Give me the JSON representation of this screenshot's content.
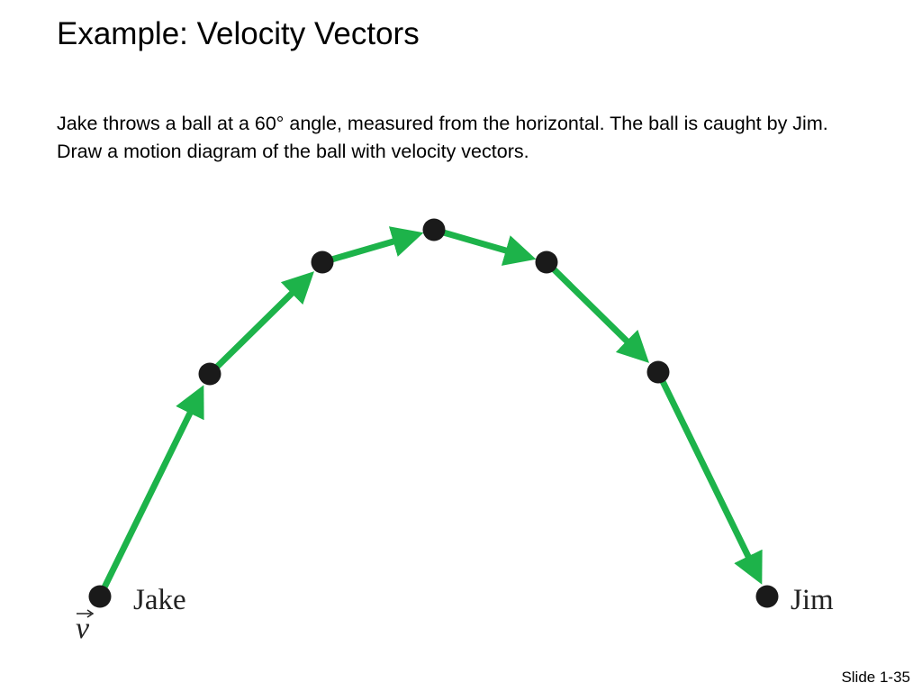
{
  "slide": {
    "title": "Example:  Velocity Vectors",
    "body": "Jake throws a ball at a 60° angle, measured from the horizontal. The ball is caught by Jim. Draw a motion diagram of the ball with velocity vectors.",
    "slide_number": "Slide 1-35"
  },
  "diagram": {
    "labels": {
      "start": "Jake",
      "end": "Jim",
      "vector_symbol": "v"
    },
    "ball_count": 7,
    "vector_count": 6,
    "colors": {
      "vector": "#1db34a",
      "ball": "#1a1a1a"
    }
  }
}
